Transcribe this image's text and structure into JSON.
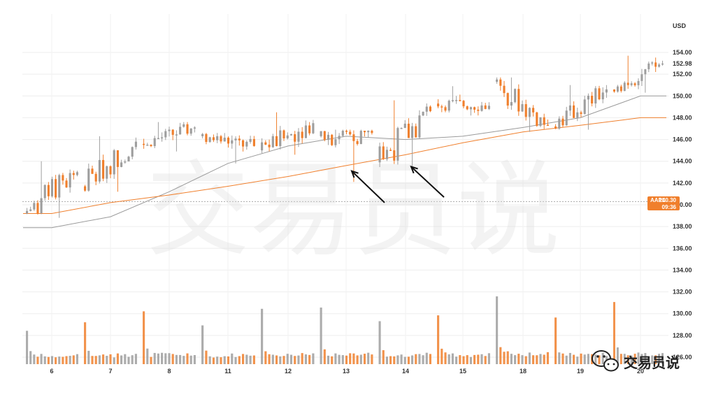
{
  "watermark": {
    "text": "交易员说",
    "logo_text": "交易员说"
  },
  "colors": {
    "up": "#9e9e9e",
    "down": "#f07f2c",
    "ma_fast": "#f07f2c",
    "ma_slow": "#9a9a9a",
    "price_line": "#aaaaaa",
    "arrow": "#111111",
    "label_bg": "#f07f2c"
  },
  "chart_data": {
    "type": "candlestick",
    "symbol": "AAPL",
    "currency_label": "USD",
    "last_price_label": "140.30",
    "last_time_label": "09:36",
    "last_price": 140.3,
    "current_price_label": "152.98",
    "current_price": 152.98,
    "y_ticks": [
      "154.00",
      "152.00",
      "150.00",
      "148.00",
      "146.00",
      "144.00",
      "142.00",
      "140.00",
      "138.00",
      "136.00",
      "134.00",
      "132.00",
      "130.00",
      "128.00",
      "126.00"
    ],
    "ylim": [
      126,
      154
    ],
    "x_tick_labels": [
      "6",
      "7",
      "8",
      "11",
      "12",
      "13",
      "14",
      "15",
      "18",
      "19",
      "20"
    ],
    "days": [
      {
        "label": "6",
        "o": 139.2,
        "c": 143.0,
        "h": 144.0,
        "l": 138.8
      },
      {
        "label": "7",
        "o": 141.7,
        "c": 145.8,
        "h": 146.3,
        "l": 141.2
      },
      {
        "label": "8",
        "o": 145.6,
        "c": 147.1,
        "h": 147.6,
        "l": 144.9
      },
      {
        "label": "11",
        "o": 146.3,
        "c": 145.4,
        "h": 146.6,
        "l": 143.8
      },
      {
        "label": "12",
        "o": 145.0,
        "c": 147.5,
        "h": 148.5,
        "l": 144.6
      },
      {
        "label": "13",
        "o": 146.3,
        "c": 146.6,
        "h": 146.9,
        "l": 142.1
      },
      {
        "label": "14",
        "o": 143.9,
        "c": 148.6,
        "h": 149.6,
        "l": 143.3
      },
      {
        "label": "15",
        "o": 149.3,
        "c": 149.1,
        "h": 150.9,
        "l": 148.2
      },
      {
        "label": "18",
        "o": 151.3,
        "c": 147.3,
        "h": 151.7,
        "l": 146.7
      },
      {
        "label": "19",
        "o": 147.2,
        "c": 150.6,
        "h": 151.0,
        "l": 146.9
      },
      {
        "label": "20",
        "o": 150.6,
        "c": 152.98,
        "h": 153.7,
        "l": 150.3
      }
    ],
    "series": [
      {
        "name": "",
        "type": "moving-average",
        "color": "#9a9a9a",
        "values": [
          137.9,
          138.9,
          141.2,
          143.8,
          145.4,
          146.3,
          146.0,
          146.3,
          147.1,
          148.0,
          150.0
        ]
      },
      {
        "name": "",
        "type": "moving-average",
        "color": "#f07f2c",
        "values": [
          139.2,
          140.2,
          140.9,
          141.7,
          142.6,
          143.6,
          144.6,
          145.7,
          146.7,
          147.3,
          148.0
        ]
      }
    ],
    "volume_relative": [
      0.45,
      0.55,
      0.75,
      0.5,
      0.8,
      0.85,
      0.6,
      0.7,
      1.0,
      0.65,
      0.95
    ],
    "annotations": [
      {
        "type": "arrow",
        "target_day": "13",
        "target_price": 143.1,
        "from_price": 140.2
      },
      {
        "type": "arrow",
        "target_day": "14",
        "target_price": 143.5,
        "from_price": 140.7
      }
    ],
    "grid": true
  }
}
